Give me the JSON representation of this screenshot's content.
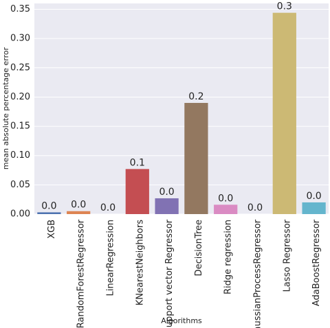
{
  "chart_data": {
    "type": "bar",
    "title": "",
    "xlabel": "Algorithms",
    "ylabel": "mean absolute percentage error",
    "ylim": [
      0,
      0.36
    ],
    "yticks": [
      0.0,
      0.05,
      0.1,
      0.15,
      0.2,
      0.25,
      0.3,
      0.35
    ],
    "ytick_labels": [
      "0.00",
      "0.05",
      "0.10",
      "0.15",
      "0.20",
      "0.25",
      "0.30",
      "0.35"
    ],
    "grid": true,
    "background": "#eaeaf2",
    "categories": [
      "XGB",
      "RandomForestRegressor",
      "LinearRegression",
      "KNearestNeighbors",
      "Support vector Regressor",
      "DecisionTree",
      "Ridge regression",
      "GaussianProcessRegressor",
      "Lasso Regressor",
      "AdaBoostRegressor"
    ],
    "values": [
      0.003,
      0.005,
      0.0,
      0.077,
      0.027,
      0.19,
      0.016,
      0.0,
      0.344,
      0.02
    ],
    "value_labels": [
      "0.0",
      "0.0",
      "0.0",
      "0.1",
      "0.0",
      "0.2",
      "0.0",
      "0.0",
      "0.3",
      "0.0"
    ],
    "colors": [
      "#4c72b0",
      "#dd8452",
      "#55a868",
      "#c44e52",
      "#8172b3",
      "#937860",
      "#da8bc3",
      "#8c8c8c",
      "#ccb974",
      "#64b5cd"
    ]
  }
}
